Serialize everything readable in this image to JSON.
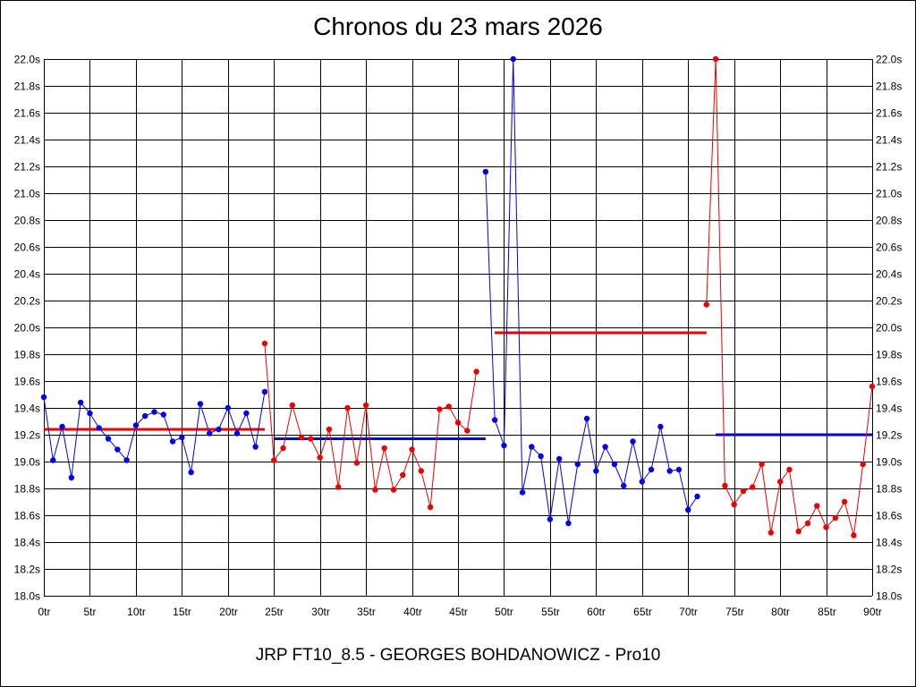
{
  "header": {
    "title": "Chronos du 23 mars 2026"
  },
  "footer": {
    "text": "JRP FT10_8.5 - GEORGES BOHDANOWICZ - Pro10"
  },
  "colors": {
    "blue": "#0000ee",
    "red": "#ee0000",
    "grid": "#000000",
    "background": "#ffffff"
  },
  "chart_data": {
    "type": "line",
    "title": "Chronos du 23 mars 2026",
    "xlabel": "",
    "ylabel": "",
    "grid": true,
    "xlim": [
      0,
      90
    ],
    "ylim": [
      18.0,
      22.0
    ],
    "x_tick_labels": [
      "0tr",
      "5tr",
      "10tr",
      "15tr",
      "20tr",
      "25tr",
      "30tr",
      "35tr",
      "40tr",
      "45tr",
      "50tr",
      "55tr",
      "60tr",
      "65tr",
      "70tr",
      "75tr",
      "80tr",
      "85tr",
      "90tr"
    ],
    "y_tick_labels": [
      "18.0s",
      "18.2s",
      "18.4s",
      "18.6s",
      "18.8s",
      "19.0s",
      "19.2s",
      "19.4s",
      "19.6s",
      "19.8s",
      "20.0s",
      "20.2s",
      "20.4s",
      "20.6s",
      "20.8s",
      "21.0s",
      "21.2s",
      "21.4s",
      "21.6s",
      "21.8s",
      "22.0s"
    ],
    "series": [
      {
        "color": "blue",
        "start_lap": 0,
        "values": [
          19.48,
          19.01,
          19.26,
          18.88,
          19.44,
          19.36,
          19.25,
          19.17,
          19.09,
          19.01,
          19.27,
          19.34,
          19.37,
          19.35,
          19.15,
          19.18,
          18.92,
          19.43,
          19.21,
          19.24,
          19.4,
          19.21,
          19.36,
          19.11,
          19.52
        ]
      },
      {
        "color": "red",
        "start_lap": 24,
        "values": [
          19.88,
          19.01,
          19.1,
          19.42,
          19.18,
          19.17,
          19.03,
          19.24,
          18.81,
          19.4,
          18.99,
          19.42,
          18.79,
          19.1,
          18.79,
          18.9,
          19.09,
          18.93,
          18.66,
          19.39,
          19.41,
          19.29,
          19.23,
          19.67
        ]
      },
      {
        "color": "blue",
        "start_lap": 48,
        "values": [
          21.16,
          19.31,
          19.12,
          22.0,
          18.77,
          19.11,
          19.04,
          18.57,
          19.02,
          18.54,
          18.98,
          19.32,
          18.93,
          19.11,
          18.98,
          18.82,
          19.15,
          18.85,
          18.94,
          19.26,
          18.93,
          18.94,
          18.64,
          18.74
        ]
      },
      {
        "color": "red",
        "start_lap": 72,
        "values": [
          20.17,
          22.0,
          18.82,
          18.68,
          18.78,
          18.81,
          18.98,
          18.47,
          18.85,
          18.94,
          18.48,
          18.54,
          18.67,
          18.51,
          18.58,
          18.7,
          18.45,
          18.98,
          19.56
        ]
      }
    ],
    "averages": [
      {
        "color": "red",
        "from": 0,
        "to": 24,
        "value": 19.24
      },
      {
        "color": "blue",
        "from": 25,
        "to": 48,
        "value": 19.17
      },
      {
        "color": "red",
        "from": 49,
        "to": 72,
        "value": 19.96
      },
      {
        "color": "blue",
        "from": 73,
        "to": 90,
        "value": 19.2
      }
    ]
  }
}
